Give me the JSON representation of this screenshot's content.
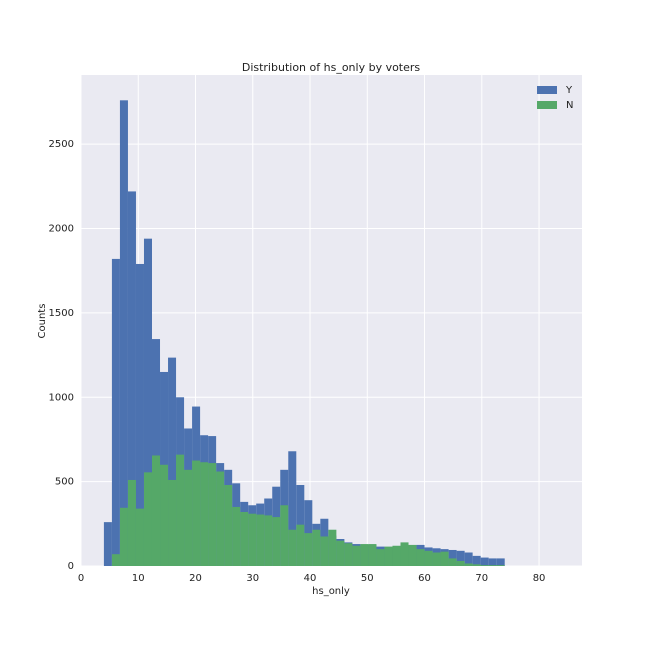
{
  "chart_data": {
    "type": "histogram",
    "title": "Distribution of hs_only by voters",
    "xlabel": "hs_only",
    "ylabel": "Counts",
    "bins": [
      4,
      5.4,
      6.8,
      8.2,
      9.6,
      11,
      12.4,
      13.8,
      15.2,
      16.6,
      18,
      19.4,
      20.8,
      22.2,
      23.6,
      25,
      26.4,
      27.8,
      29.2,
      30.6,
      32,
      33.4,
      34.8,
      36.2,
      37.6,
      39,
      40.4,
      41.8,
      43.2,
      44.6,
      46,
      47.4,
      48.8,
      50.2,
      51.6,
      53,
      54.4,
      55.8,
      57.2,
      58.6,
      60,
      61.4,
      62.8,
      64.2,
      65.6,
      67,
      68.4,
      69.8,
      71.2,
      72.6,
      74
    ],
    "series": [
      {
        "name": "Y",
        "color": "#4c72b0",
        "values": [
          260,
          1820,
          2760,
          2220,
          1790,
          1940,
          1345,
          1150,
          1235,
          1000,
          815,
          945,
          775,
          770,
          610,
          570,
          490,
          380,
          360,
          370,
          400,
          470,
          570,
          680,
          480,
          390,
          250,
          280,
          180,
          160,
          140,
          130,
          125,
          125,
          115,
          110,
          110,
          115,
          120,
          125,
          110,
          105,
          100,
          95,
          90,
          80,
          60,
          50,
          45,
          45
        ]
      },
      {
        "name": "N",
        "color": "#55a868",
        "values": [
          0,
          70,
          345,
          510,
          340,
          555,
          655,
          600,
          510,
          660,
          570,
          625,
          615,
          610,
          560,
          480,
          350,
          320,
          310,
          305,
          300,
          290,
          360,
          215,
          245,
          195,
          215,
          175,
          215,
          150,
          135,
          120,
          130,
          130,
          100,
          115,
          120,
          140,
          125,
          100,
          90,
          80,
          85,
          45,
          30,
          15,
          10,
          5,
          5,
          5
        ]
      }
    ],
    "xlim": [
      0,
      87.5
    ],
    "ylim": [
      0,
      2910
    ],
    "xticks": [
      0,
      10,
      20,
      30,
      40,
      50,
      60,
      70,
      80
    ],
    "yticks": [
      0,
      500,
      1000,
      1500,
      2000,
      2500
    ],
    "grid": true,
    "legend": "upper right"
  }
}
